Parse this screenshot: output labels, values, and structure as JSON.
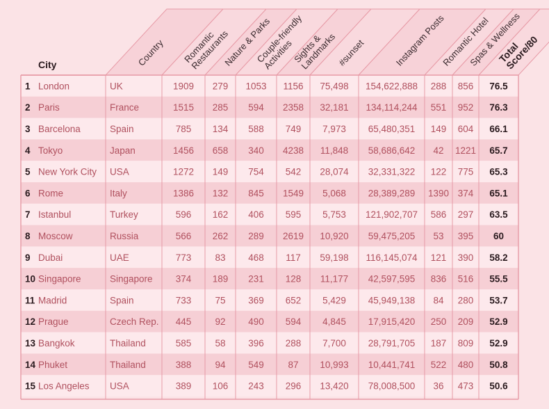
{
  "table": {
    "city_header": "City",
    "columns": [
      "Country",
      "Romantic\nRestaurants",
      "Nature & Parks",
      "Couple-friendly\nActivities",
      "Sights &\nLandmarks",
      "#sunset",
      "Instagram Posts",
      "Romantic Hotel",
      "Spas & Wellness",
      "Total\nScore/80"
    ],
    "rows": [
      {
        "rank": "1",
        "city": "London",
        "cells": [
          "UK",
          "1909",
          "279",
          "1053",
          "1156",
          "75,498",
          "154,622,888",
          "288",
          "856",
          "76.5"
        ]
      },
      {
        "rank": "2",
        "city": "Paris",
        "cells": [
          "France",
          "1515",
          "285",
          "594",
          "2358",
          "32,181",
          "134,114,244",
          "551",
          "952",
          "76.3"
        ]
      },
      {
        "rank": "3",
        "city": "Barcelona",
        "cells": [
          "Spain",
          "785",
          "134",
          "588",
          "749",
          "7,973",
          "65,480,351",
          "149",
          "604",
          "66.1"
        ]
      },
      {
        "rank": "4",
        "city": "Tokyo",
        "cells": [
          "Japan",
          "1456",
          "658",
          "340",
          "4238",
          "11,848",
          "58,686,642",
          "42",
          "1221",
          "65.7"
        ]
      },
      {
        "rank": "5",
        "city": "New York City",
        "cells": [
          "USA",
          "1272",
          "149",
          "754",
          "542",
          "28,074",
          "32,331,322",
          "122",
          "775",
          "65.3"
        ]
      },
      {
        "rank": "6",
        "city": "Rome",
        "cells": [
          "Italy",
          "1386",
          "132",
          "845",
          "1549",
          "5,068",
          "28,389,289",
          "1390",
          "374",
          "65.1"
        ]
      },
      {
        "rank": "7",
        "city": "Istanbul",
        "cells": [
          "Turkey",
          "596",
          "162",
          "406",
          "595",
          "5,753",
          "121,902,707",
          "586",
          "297",
          "63.5"
        ]
      },
      {
        "rank": "8",
        "city": "Moscow",
        "cells": [
          "Russia",
          "566",
          "262",
          "289",
          "2619",
          "10,920",
          "59,475,205",
          "53",
          "395",
          "60"
        ]
      },
      {
        "rank": "9",
        "city": "Dubai",
        "cells": [
          "UAE",
          "773",
          "83",
          "468",
          "117",
          "59,198",
          "116,145,074",
          "121",
          "390",
          "58.2"
        ]
      },
      {
        "rank": "10",
        "city": "Singapore",
        "cells": [
          "Singapore",
          "374",
          "189",
          "231",
          "128",
          "11,177",
          "42,597,595",
          "836",
          "516",
          "55.5"
        ]
      },
      {
        "rank": "11",
        "city": "Madrid",
        "cells": [
          "Spain",
          "733",
          "75",
          "369",
          "652",
          "5,429",
          "45,949,138",
          "84",
          "280",
          "53.7"
        ]
      },
      {
        "rank": "12",
        "city": "Prague",
        "cells": [
          "Czech Rep.",
          "445",
          "92",
          "490",
          "594",
          "4,845",
          "17,915,420",
          "250",
          "209",
          "52.9"
        ]
      },
      {
        "rank": "13",
        "city": "Bangkok",
        "cells": [
          "Thailand",
          "585",
          "58",
          "396",
          "288",
          "7,700",
          "28,791,705",
          "187",
          "809",
          "52.9"
        ]
      },
      {
        "rank": "14",
        "city": "Phuket",
        "cells": [
          "Thailand",
          "388",
          "94",
          "549",
          "87",
          "10,993",
          "10,441,741",
          "522",
          "480",
          "50.8"
        ]
      },
      {
        "rank": "15",
        "city": "Los Angeles",
        "cells": [
          "USA",
          "389",
          "106",
          "243",
          "296",
          "13,420",
          "78,008,500",
          "36",
          "473",
          "50.6"
        ]
      }
    ]
  },
  "colors": {
    "background": "#fbe3e6",
    "row_light": "#fde9ec",
    "row_dark": "#f6cfd5",
    "grid": "#e79aa6",
    "cell_text": "#b0505e",
    "header_text": "#3a2a2e",
    "bold_text": "#2a1a1e"
  }
}
